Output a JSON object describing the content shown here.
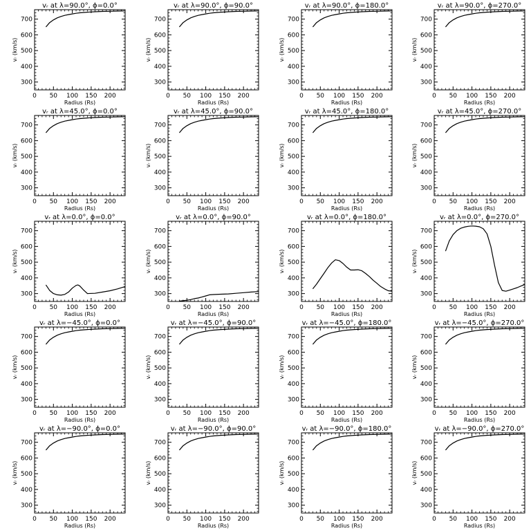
{
  "axes": {
    "xlabel": "Radius (Rs)",
    "ylabel": "vᵣ (km/s)",
    "xlim": [
      0,
      240
    ],
    "ylim": [
      250,
      760
    ],
    "xticks": [
      0,
      50,
      100,
      150,
      200
    ],
    "yticks": [
      300,
      400,
      500,
      600,
      700
    ]
  },
  "chart_data": [
    {
      "type": "line",
      "title": "vᵣ at λ=90.0°, ϕ=0.0°",
      "x": [
        30,
        40,
        50,
        60,
        70,
        80,
        90,
        100,
        110,
        120,
        140,
        160,
        180,
        200,
        220,
        240
      ],
      "y": [
        650,
        678,
        695,
        708,
        717,
        724,
        729,
        733,
        737,
        740,
        744,
        747,
        749,
        750,
        751,
        752
      ]
    },
    {
      "type": "line",
      "title": "vᵣ at λ=90.0°, ϕ=90.0°",
      "x": [
        30,
        40,
        50,
        60,
        70,
        80,
        90,
        100,
        110,
        120,
        140,
        160,
        180,
        200,
        220,
        240
      ],
      "y": [
        650,
        678,
        695,
        708,
        717,
        724,
        729,
        733,
        737,
        740,
        744,
        747,
        749,
        750,
        751,
        752
      ]
    },
    {
      "type": "line",
      "title": "vᵣ at λ=90.0°, ϕ=180.0°",
      "x": [
        30,
        40,
        50,
        60,
        70,
        80,
        90,
        100,
        110,
        120,
        140,
        160,
        180,
        200,
        220,
        240
      ],
      "y": [
        650,
        678,
        695,
        708,
        717,
        724,
        729,
        733,
        737,
        740,
        744,
        747,
        749,
        750,
        751,
        752
      ]
    },
    {
      "type": "line",
      "title": "vᵣ at λ=90.0°, ϕ=270.0°",
      "x": [
        30,
        40,
        50,
        60,
        70,
        80,
        90,
        100,
        110,
        120,
        140,
        160,
        180,
        200,
        220,
        240
      ],
      "y": [
        650,
        678,
        695,
        708,
        717,
        724,
        729,
        733,
        737,
        740,
        744,
        747,
        749,
        750,
        751,
        752
      ]
    },
    {
      "type": "line",
      "title": "vᵣ at λ=45.0°, ϕ=0.0°",
      "x": [
        30,
        40,
        50,
        60,
        70,
        80,
        90,
        100,
        110,
        120,
        140,
        160,
        180,
        200,
        220,
        240
      ],
      "y": [
        650,
        678,
        695,
        708,
        717,
        724,
        729,
        733,
        737,
        740,
        744,
        747,
        749,
        750,
        751,
        752
      ]
    },
    {
      "type": "line",
      "title": "vᵣ at λ=45.0°, ϕ=90.0°",
      "x": [
        30,
        40,
        50,
        60,
        70,
        80,
        90,
        100,
        110,
        120,
        140,
        160,
        180,
        200,
        220,
        240
      ],
      "y": [
        650,
        678,
        695,
        708,
        717,
        724,
        729,
        733,
        737,
        740,
        744,
        747,
        749,
        750,
        751,
        752
      ]
    },
    {
      "type": "line",
      "title": "vᵣ at λ=45.0°, ϕ=180.0°",
      "x": [
        30,
        40,
        50,
        60,
        70,
        80,
        90,
        100,
        110,
        120,
        140,
        160,
        180,
        200,
        220,
        240
      ],
      "y": [
        650,
        678,
        695,
        708,
        717,
        724,
        729,
        733,
        737,
        740,
        744,
        747,
        749,
        750,
        751,
        752
      ]
    },
    {
      "type": "line",
      "title": "vᵣ at λ=45.0°, ϕ=270.0°",
      "x": [
        30,
        40,
        50,
        60,
        70,
        80,
        90,
        100,
        110,
        120,
        140,
        160,
        180,
        200,
        220,
        240
      ],
      "y": [
        650,
        678,
        695,
        708,
        717,
        724,
        729,
        733,
        737,
        740,
        744,
        747,
        749,
        750,
        751,
        752
      ]
    },
    {
      "type": "line",
      "title": "vᵣ at λ=0.0°, ϕ=0.0°",
      "x": [
        30,
        40,
        50,
        60,
        70,
        80,
        90,
        100,
        110,
        115,
        120,
        130,
        140,
        160,
        180,
        200,
        220,
        240
      ],
      "y": [
        355,
        320,
        300,
        292,
        290,
        295,
        310,
        335,
        352,
        355,
        348,
        322,
        300,
        302,
        310,
        318,
        330,
        345
      ]
    },
    {
      "type": "line",
      "title": "vᵣ at λ=0.0°, ϕ=90.0°",
      "x": [
        30,
        40,
        50,
        60,
        70,
        80,
        90,
        100,
        110,
        120,
        140,
        160,
        180,
        200,
        220,
        240
      ],
      "y": [
        252,
        255,
        258,
        262,
        268,
        272,
        278,
        285,
        292,
        294,
        296,
        298,
        302,
        306,
        310,
        313
      ]
    },
    {
      "type": "line",
      "title": "vᵣ at λ=0.0°, ϕ=180.0°",
      "x": [
        30,
        40,
        50,
        60,
        70,
        80,
        90,
        100,
        110,
        120,
        130,
        140,
        150,
        160,
        170,
        180,
        190,
        200,
        210,
        220,
        230,
        240
      ],
      "y": [
        330,
        360,
        395,
        430,
        465,
        495,
        515,
        510,
        492,
        468,
        450,
        450,
        452,
        445,
        428,
        408,
        385,
        365,
        345,
        330,
        318,
        315
      ]
    },
    {
      "type": "line",
      "title": "vᵣ at λ=0.0°, ϕ=270.0°",
      "x": [
        30,
        40,
        50,
        60,
        70,
        80,
        90,
        100,
        110,
        120,
        130,
        140,
        150,
        160,
        170,
        180,
        190,
        200,
        210,
        220,
        230,
        240
      ],
      "y": [
        570,
        635,
        675,
        700,
        715,
        723,
        728,
        730,
        729,
        725,
        712,
        680,
        600,
        480,
        370,
        320,
        315,
        322,
        330,
        338,
        348,
        358
      ]
    },
    {
      "type": "line",
      "title": "vᵣ at λ=−45.0°, ϕ=0.0°",
      "x": [
        30,
        40,
        50,
        60,
        70,
        80,
        90,
        100,
        110,
        120,
        140,
        160,
        180,
        200,
        220,
        240
      ],
      "y": [
        650,
        678,
        695,
        708,
        717,
        724,
        729,
        733,
        737,
        740,
        744,
        747,
        749,
        750,
        751,
        752
      ]
    },
    {
      "type": "line",
      "title": "vᵣ at λ=−45.0°, ϕ=90.0°",
      "x": [
        30,
        40,
        50,
        60,
        70,
        80,
        90,
        100,
        110,
        120,
        140,
        160,
        180,
        200,
        220,
        240
      ],
      "y": [
        650,
        678,
        695,
        708,
        717,
        724,
        729,
        733,
        737,
        740,
        744,
        747,
        749,
        750,
        751,
        752
      ]
    },
    {
      "type": "line",
      "title": "vᵣ at λ=−45.0°, ϕ=180.0°",
      "x": [
        30,
        40,
        50,
        60,
        70,
        80,
        90,
        100,
        110,
        120,
        140,
        160,
        180,
        200,
        220,
        240
      ],
      "y": [
        650,
        678,
        695,
        708,
        717,
        724,
        729,
        733,
        737,
        740,
        744,
        747,
        749,
        750,
        751,
        752
      ]
    },
    {
      "type": "line",
      "title": "vᵣ at λ=−45.0°, ϕ=270.0°",
      "x": [
        30,
        40,
        50,
        60,
        70,
        80,
        90,
        100,
        110,
        120,
        140,
        160,
        180,
        200,
        220,
        240
      ],
      "y": [
        650,
        678,
        695,
        708,
        717,
        724,
        729,
        733,
        737,
        740,
        744,
        747,
        749,
        750,
        751,
        752
      ]
    },
    {
      "type": "line",
      "title": "vᵣ at λ=−90.0°, ϕ=0.0°",
      "x": [
        30,
        40,
        50,
        60,
        70,
        80,
        90,
        100,
        110,
        120,
        140,
        160,
        180,
        200,
        220,
        240
      ],
      "y": [
        650,
        678,
        695,
        708,
        717,
        724,
        729,
        733,
        737,
        740,
        744,
        747,
        749,
        750,
        751,
        752
      ]
    },
    {
      "type": "line",
      "title": "vᵣ at λ=−90.0°, ϕ=90.0°",
      "x": [
        30,
        40,
        50,
        60,
        70,
        80,
        90,
        100,
        110,
        120,
        140,
        160,
        180,
        200,
        220,
        240
      ],
      "y": [
        650,
        678,
        695,
        708,
        717,
        724,
        729,
        733,
        737,
        740,
        744,
        747,
        749,
        750,
        751,
        752
      ]
    },
    {
      "type": "line",
      "title": "vᵣ at λ=−90.0°, ϕ=180.0°",
      "x": [
        30,
        40,
        50,
        60,
        70,
        80,
        90,
        100,
        110,
        120,
        140,
        160,
        180,
        200,
        220,
        240
      ],
      "y": [
        650,
        678,
        695,
        708,
        717,
        724,
        729,
        733,
        737,
        740,
        744,
        747,
        749,
        750,
        751,
        752
      ]
    },
    {
      "type": "line",
      "title": "vᵣ at λ=−90.0°, ϕ=270.0°",
      "x": [
        30,
        40,
        50,
        60,
        70,
        80,
        90,
        100,
        110,
        120,
        140,
        160,
        180,
        200,
        220,
        240
      ],
      "y": [
        650,
        678,
        695,
        708,
        717,
        724,
        729,
        733,
        737,
        740,
        744,
        747,
        749,
        750,
        751,
        752
      ]
    }
  ]
}
